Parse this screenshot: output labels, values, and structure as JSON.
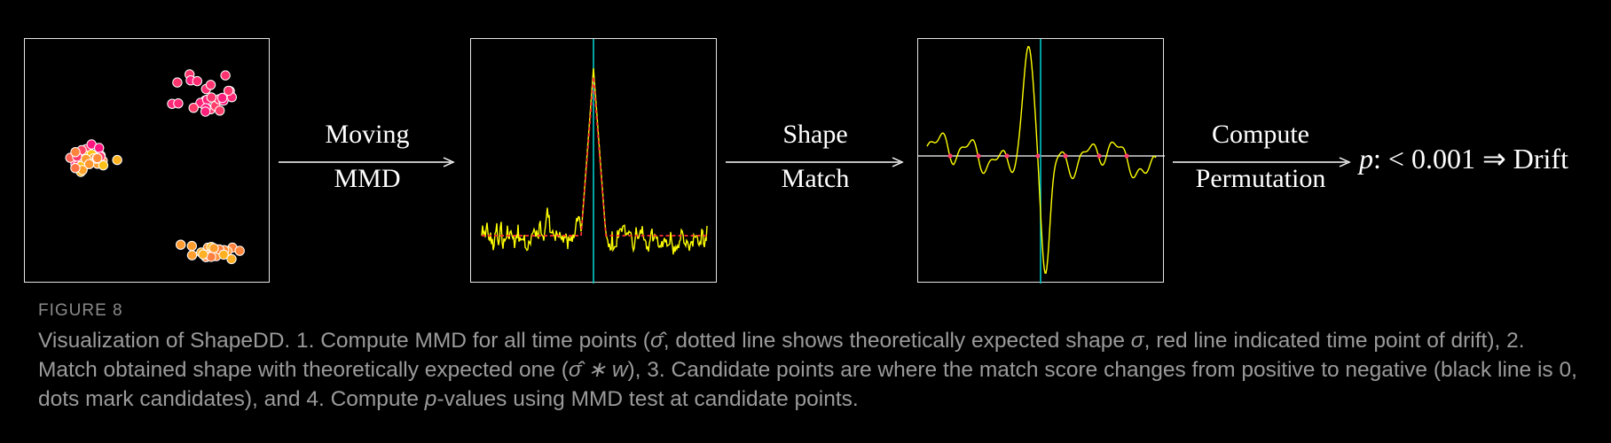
{
  "colors": {
    "background": "#000000",
    "panel_border": "#e6e6e6",
    "signal": "#ffff00",
    "expected_shape": "#ff3333",
    "drift_marker": "#00c8c8",
    "zero_line": "#ffffff",
    "candidate_dot": "#ff3b6b",
    "caption": "#9a9a9a",
    "arrow": "#ffffff"
  },
  "steps": [
    {
      "line1": "Moving",
      "line2": "MMD"
    },
    {
      "line1": "Shape",
      "line2": "Match"
    },
    {
      "line1": "Compute",
      "line2": "Permutation"
    }
  ],
  "result": {
    "p_symbol": "p",
    "expression": ": < 0.001 ⇒ ",
    "outcome": "Drift"
  },
  "figure": {
    "label": "FIGURE 8",
    "caption_parts": [
      "Visualization of ShapeDD. 1. Compute MMD for all time points (",
      "σ̂",
      ", dotted line shows theoretically expected shape ",
      "σ",
      ", red line indicated time point of drift), 2. Match obtained shape with theoretically expected one (",
      "σ̂ ∗ w",
      "), 3. Candidate points are where the match score changes from positive to negative (black line is 0, dots mark candidates), and 4. Compute ",
      "p",
      "-values using MMD test at candidate points."
    ]
  }
}
